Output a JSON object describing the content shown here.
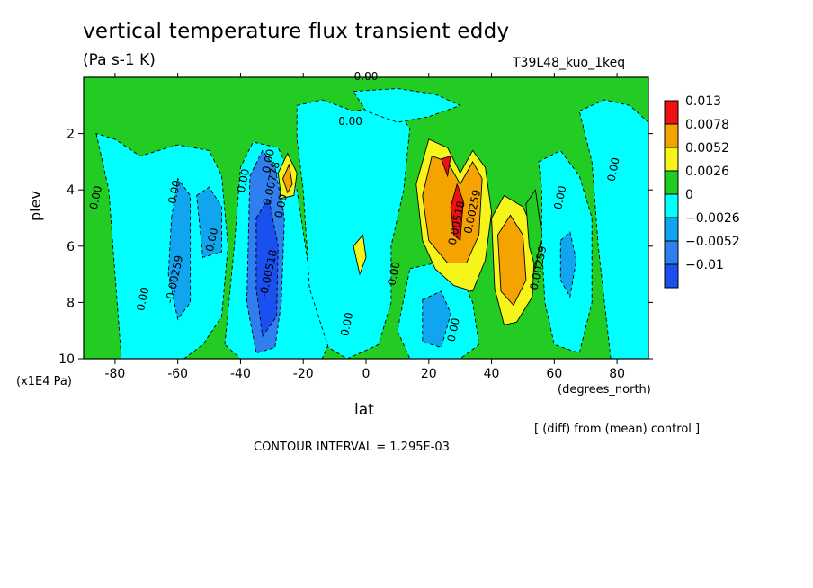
{
  "chart_data": {
    "type": "heatmap",
    "subtype": "filled-contour",
    "title": "vertical temperature flux transient eddy",
    "units": "(Pa s-1 K)",
    "run_label": "T39L48_kuo_1keq",
    "xlabel": "lat",
    "x_unit_label": "(degrees_north)",
    "ylabel": "plev",
    "y_unit_label": "(x1E4 Pa)",
    "note": "[ (diff) from (mean) control ]",
    "contour_interval_text": "CONTOUR INTERVAL = 1.295E-03",
    "xlim": [
      -90,
      90
    ],
    "ylim": [
      10,
      0
    ],
    "x_ticks": [
      -80,
      -60,
      -40,
      -20,
      0,
      20,
      40,
      60,
      80
    ],
    "x_tick_labels": [
      "-80",
      "-60",
      "-40",
      "-20",
      "0",
      "20",
      "40",
      "60",
      "80"
    ],
    "y_ticks": [
      2,
      4,
      6,
      8,
      10
    ],
    "y_tick_labels": [
      "2",
      "4",
      "6",
      "8",
      "10"
    ],
    "legend": {
      "placement": "right",
      "levels": [
        {
          "label": "0.013",
          "color": "#ee1111"
        },
        {
          "label": "0.0078",
          "color": "#f5a300"
        },
        {
          "label": "0.0052",
          "color": "#f5f51b"
        },
        {
          "label": "0.0026",
          "color": "#22cc22"
        },
        {
          "label": "0",
          "color": "#00ffff"
        },
        {
          "label": "−0.0026",
          "color": "#11a5f0"
        },
        {
          "label": "−0.0052",
          "color": "#2f7ff0"
        },
        {
          "label": "−0.01",
          "color": "#1a4ff0"
        }
      ]
    },
    "contour_labels": [
      {
        "text": "0.00",
        "lat": 0,
        "p": 0.1
      },
      {
        "text": "0.00",
        "lat": -5,
        "p": 1.7
      },
      {
        "text": "0.00",
        "lat": -85,
        "p": 4.3
      },
      {
        "text": "0.00",
        "lat": -70,
        "p": 7.9
      },
      {
        "text": "-0.00259",
        "lat": -60,
        "p": 7.2
      },
      {
        "text": "0.00",
        "lat": -60,
        "p": 4.1
      },
      {
        "text": "0.00",
        "lat": -48,
        "p": 5.8
      },
      {
        "text": "-0.00518",
        "lat": -30,
        "p": 7.0
      },
      {
        "text": "0.00",
        "lat": -38,
        "p": 3.7
      },
      {
        "text": "0.00",
        "lat": -30,
        "p": 3.0
      },
      {
        "text": "0.00778",
        "lat": -29,
        "p": 3.8
      },
      {
        "text": "0.00",
        "lat": -26,
        "p": 4.6
      },
      {
        "text": "0.00",
        "lat": 10,
        "p": 7.0
      },
      {
        "text": "0.00",
        "lat": -5,
        "p": 8.8
      },
      {
        "text": "0.00",
        "lat": 29,
        "p": 9.0
      },
      {
        "text": "0.00518",
        "lat": 30,
        "p": 5.2
      },
      {
        "text": "0.00259",
        "lat": 35,
        "p": 4.8
      },
      {
        "text": "0.00259",
        "lat": 56,
        "p": 6.8
      },
      {
        "text": "0.00",
        "lat": 63,
        "p": 4.3
      },
      {
        "text": "0.00",
        "lat": 80,
        "p": 3.3
      }
    ],
    "features": [
      {
        "sign": "positive",
        "max_level": "0.013",
        "lat_range": [
          24,
          32
        ],
        "p_range": [
          2.5,
          5.0
        ]
      },
      {
        "sign": "positive",
        "max_level": "0.0078",
        "lat_range": [
          40,
          55
        ],
        "p_range": [
          4.5,
          8.5
        ]
      },
      {
        "sign": "positive",
        "max_level": "0.0078",
        "lat_range": [
          -28,
          -22
        ],
        "p_range": [
          2.2,
          4.5
        ]
      },
      {
        "sign": "negative",
        "min_level": "-0.01",
        "lat_range": [
          -38,
          -24
        ],
        "p_range": [
          2.5,
          9.5
        ]
      },
      {
        "sign": "negative",
        "min_level": "-0.0052",
        "lat_range": [
          -54,
          -46
        ],
        "p_range": [
          4.0,
          6.5
        ]
      },
      {
        "sign": "negative",
        "min_level": "-0.0052",
        "lat_range": [
          16,
          28
        ],
        "p_range": [
          7.5,
          9.5
        ]
      },
      {
        "sign": "negative",
        "min_level": "-0.0026",
        "lat_range": [
          60,
          70
        ],
        "p_range": [
          5.0,
          7.5
        ]
      }
    ]
  }
}
